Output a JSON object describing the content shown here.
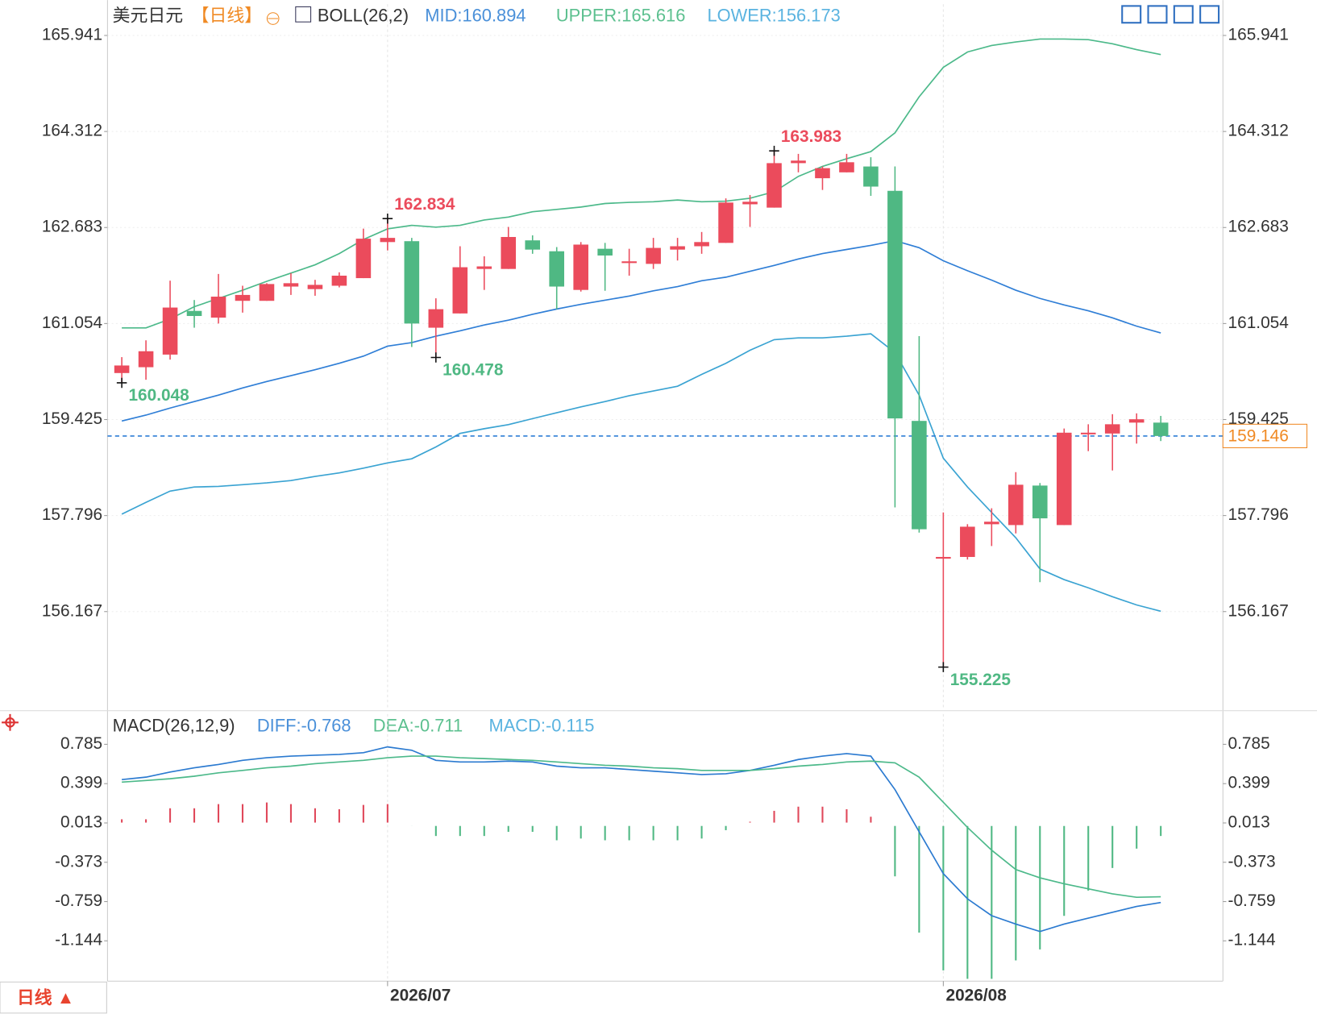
{
  "header": {
    "symbol": "美元日元",
    "period": "【日线】",
    "indicator": "BOLL(26,2)"
  },
  "footer": {
    "period_button": "日线 ▲"
  },
  "chart_data": [
    {
      "type": "candlestick",
      "categories": [
        null,
        null,
        null,
        null,
        null,
        null,
        null,
        null,
        null,
        null,
        null,
        "2026/07",
        null,
        null,
        null,
        null,
        null,
        null,
        null,
        null,
        null,
        null,
        null,
        null,
        null,
        null,
        null,
        null,
        null,
        null,
        null,
        null,
        null,
        null,
        "2026/08",
        null,
        null,
        null,
        null,
        null,
        null,
        null,
        null,
        null
      ],
      "open": [
        160.214,
        160.313,
        160.527,
        161.268,
        161.154,
        161.439,
        161.439,
        161.681,
        161.638,
        161.695,
        161.824,
        162.436,
        162.451,
        160.983,
        161.225,
        161.98,
        161.98,
        162.465,
        162.28,
        161.624,
        162.322,
        162.08,
        162.066,
        162.308,
        162.365,
        162.422,
        163.077,
        163.02,
        163.775,
        163.519,
        163.619,
        163.718,
        163.305,
        159.402,
        157.065,
        157.094,
        157.649,
        157.635,
        158.305,
        157.635,
        159.174,
        159.188,
        159.373,
        159.373
      ],
      "high": [
        160.484,
        160.769,
        161.781,
        161.453,
        161.895,
        161.695,
        161.738,
        161.909,
        161.795,
        161.923,
        162.664,
        162.834,
        162.507,
        161.482,
        162.365,
        162.194,
        162.693,
        162.55,
        162.351,
        162.436,
        162.422,
        162.322,
        162.507,
        162.507,
        162.607,
        163.177,
        163.234,
        163.983,
        163.932,
        163.718,
        163.932,
        163.875,
        163.718,
        160.841,
        157.849,
        157.65,
        157.92,
        158.533,
        158.348,
        159.273,
        159.345,
        159.516,
        159.53,
        159.487
      ],
      "low": [
        160.048,
        160.1,
        160.442,
        160.983,
        161.054,
        161.239,
        161.439,
        161.539,
        161.525,
        161.667,
        161.824,
        162.294,
        160.655,
        160.478,
        161.225,
        161.624,
        161.98,
        162.237,
        161.297,
        161.596,
        161.61,
        161.866,
        161.98,
        162.123,
        162.237,
        162.422,
        162.693,
        163.02,
        163.619,
        163.32,
        163.619,
        163.22,
        157.934,
        157.507,
        155.225,
        157.05,
        157.279,
        157.493,
        156.666,
        157.635,
        158.889,
        158.561,
        159.017,
        159.06
      ],
      "close": [
        160.342,
        160.584,
        161.325,
        161.182,
        161.51,
        161.539,
        161.724,
        161.738,
        161.71,
        161.866,
        162.493,
        162.507,
        161.054,
        161.297,
        162.009,
        162.023,
        162.522,
        162.308,
        161.681,
        162.393,
        162.208,
        162.109,
        162.337,
        162.365,
        162.436,
        163.106,
        163.12,
        163.775,
        163.818,
        163.69,
        163.79,
        163.377,
        159.444,
        157.564,
        157.094,
        157.607,
        157.692,
        158.319,
        157.749,
        159.202,
        159.202,
        159.345,
        159.43,
        159.146
      ],
      "up_color": "#eb4b5c",
      "down_color": "#4fb883",
      "bands": [
        {
          "label": "MID:160.894",
          "color": "#2f7ed6",
          "values": [
            159.4,
            159.5,
            159.62,
            159.73,
            159.84,
            159.96,
            160.07,
            160.17,
            160.27,
            160.38,
            160.5,
            160.67,
            160.73,
            160.84,
            160.93,
            161.03,
            161.11,
            161.21,
            161.3,
            161.38,
            161.45,
            161.52,
            161.61,
            161.68,
            161.78,
            161.84,
            161.94,
            162.04,
            162.15,
            162.24,
            162.31,
            162.38,
            162.46,
            162.34,
            162.12,
            161.95,
            161.79,
            161.62,
            161.48,
            161.37,
            161.27,
            161.15,
            161.01,
            160.894
          ]
        },
        {
          "label": "UPPER:165.616",
          "color": "#4cb98a",
          "values": [
            160.98,
            160.98,
            161.13,
            161.34,
            161.48,
            161.62,
            161.77,
            161.91,
            162.05,
            162.24,
            162.48,
            162.66,
            162.72,
            162.69,
            162.72,
            162.81,
            162.86,
            162.95,
            162.99,
            163.03,
            163.09,
            163.11,
            163.12,
            163.15,
            163.12,
            163.13,
            163.18,
            163.29,
            163.55,
            163.72,
            163.85,
            163.97,
            164.29,
            164.9,
            165.4,
            165.66,
            165.77,
            165.83,
            165.88,
            165.88,
            165.87,
            165.8,
            165.7,
            165.616
          ]
        },
        {
          "label": "LOWER:156.173",
          "color": "#3aa3d2",
          "values": [
            157.82,
            158.02,
            158.21,
            158.28,
            158.29,
            158.32,
            158.35,
            158.39,
            158.46,
            158.52,
            158.6,
            158.69,
            158.76,
            158.96,
            159.19,
            159.27,
            159.34,
            159.44,
            159.54,
            159.64,
            159.73,
            159.83,
            159.91,
            159.99,
            160.19,
            160.38,
            160.6,
            160.78,
            160.81,
            160.81,
            160.84,
            160.88,
            160.56,
            159.84,
            158.77,
            158.28,
            157.85,
            157.42,
            156.89,
            156.71,
            156.57,
            156.42,
            156.28,
            156.173
          ]
        }
      ],
      "annotations": [
        162.834,
        163.983,
        160.048,
        160.478,
        155.225
      ],
      "last_price": 159.146,
      "ylim": [
        154.5,
        166.47
      ],
      "yticks": [
        165.941,
        164.312,
        162.683,
        161.054,
        159.425,
        157.796,
        156.167
      ],
      "grid": true
    },
    {
      "type": "macd",
      "title": "MACD(26,12,9)",
      "series": [
        {
          "label": "DIFF:-0.768",
          "color": "#2b7ad0",
          "values": [
            0.439,
            0.463,
            0.513,
            0.554,
            0.587,
            0.628,
            0.653,
            0.669,
            0.678,
            0.686,
            0.703,
            0.76,
            0.727,
            0.628,
            0.612,
            0.612,
            0.62,
            0.612,
            0.571,
            0.554,
            0.554,
            0.538,
            0.521,
            0.505,
            0.488,
            0.496,
            0.529,
            0.579,
            0.636,
            0.669,
            0.694,
            0.669,
            0.34,
            -0.073,
            -0.485,
            -0.732,
            -0.897,
            -0.979,
            -1.053,
            -0.979,
            -0.922,
            -0.864,
            -0.806,
            -0.768
          ]
        },
        {
          "label": "DEA:-0.711",
          "color": "#4cb98a",
          "values": [
            0.414,
            0.43,
            0.447,
            0.472,
            0.505,
            0.529,
            0.554,
            0.571,
            0.595,
            0.612,
            0.628,
            0.653,
            0.669,
            0.669,
            0.653,
            0.645,
            0.636,
            0.628,
            0.612,
            0.595,
            0.579,
            0.571,
            0.554,
            0.546,
            0.529,
            0.529,
            0.529,
            0.546,
            0.571,
            0.587,
            0.612,
            0.62,
            0.603,
            0.463,
            0.216,
            -0.031,
            -0.254,
            -0.444,
            -0.526,
            -0.584,
            -0.633,
            -0.683,
            -0.716,
            -0.711
          ]
        }
      ],
      "histogram": {
        "label": "MACD:-0.115",
        "up_color": "#e0485a",
        "down_color": "#4fb883",
        "values": [
          0.049,
          0.049,
          0.157,
          0.157,
          0.198,
          0.198,
          0.214,
          0.198,
          0.157,
          0.148,
          0.19,
          0.198,
          -0.016,
          -0.115,
          -0.115,
          -0.115,
          -0.074,
          -0.074,
          -0.157,
          -0.14,
          -0.157,
          -0.157,
          -0.157,
          -0.157,
          -0.14,
          -0.058,
          0.025,
          0.132,
          0.173,
          0.173,
          0.148,
          0.074,
          -0.511,
          -1.063,
          -1.434,
          -1.517,
          -1.517,
          -1.336,
          -1.228,
          -0.899,
          -0.651,
          -0.429,
          -0.239,
          -0.115
        ]
      },
      "ylim": [
        -1.54,
        1.082
      ],
      "yticks": [
        0.785,
        0.399,
        0.013,
        -0.373,
        -0.759,
        -1.144
      ]
    }
  ]
}
